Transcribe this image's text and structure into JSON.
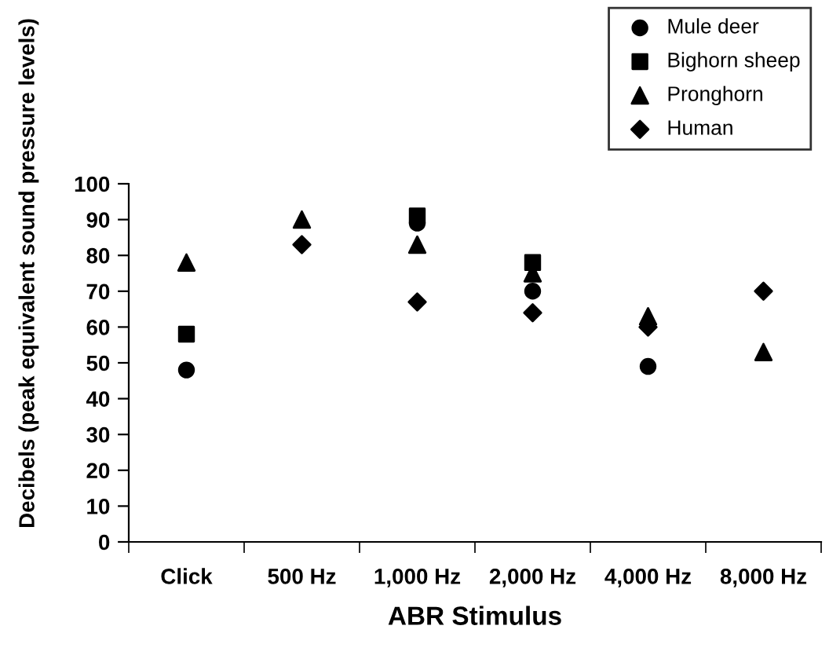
{
  "chart_data": {
    "type": "scatter",
    "xlabel": "ABR Stimulus",
    "ylabel": "Decibels (peak equivalent sound pressure levels)",
    "categories": [
      "Click",
      "500 Hz",
      "1,000 Hz",
      "2,000 Hz",
      "4,000 Hz",
      "8,000 Hz"
    ],
    "series": [
      {
        "name": "Mule deer",
        "color": "#000000",
        "marker": "circle",
        "values": [
          48,
          null,
          89,
          70,
          49,
          null
        ]
      },
      {
        "name": "Bighorn sheep",
        "color": "#000000",
        "marker": "square",
        "values": [
          58,
          null,
          91,
          78,
          null,
          null
        ]
      },
      {
        "name": "Pronghorn",
        "color": "#000000",
        "marker": "triangle",
        "values": [
          78,
          90,
          83,
          75,
          63,
          53
        ]
      },
      {
        "name": "Human",
        "color": "#000000",
        "marker": "diamond",
        "values": [
          null,
          83,
          67,
          64,
          60,
          70
        ]
      }
    ],
    "ylim": [
      0,
      100
    ],
    "yticks": [
      0,
      10,
      20,
      30,
      40,
      50,
      60,
      70,
      80,
      90,
      100
    ],
    "grid": false,
    "legend": "top right"
  }
}
